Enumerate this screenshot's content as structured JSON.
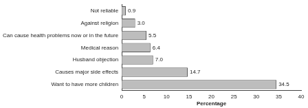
{
  "chart_data": {
    "type": "bar",
    "orientation": "horizontal",
    "categories": [
      "Not reliable",
      "Against religion",
      "Can cause health problems now or in the future",
      "Medical reason",
      "Husband objection",
      "Causes major side effects",
      "Want to have more children"
    ],
    "values": [
      0.9,
      3.0,
      5.5,
      6.4,
      7.0,
      14.7,
      34.5
    ],
    "value_labels": [
      "0.9",
      "3.0",
      "5.5",
      "6.4",
      "7.0",
      "14.7",
      "34.5"
    ],
    "data_labels": true,
    "x_label": "Percentage",
    "xlim": [
      0,
      40
    ],
    "xticks": [
      0,
      5,
      10,
      15,
      20,
      25,
      30,
      35,
      40
    ],
    "color": "#bdbdbd",
    "grid": false
  }
}
